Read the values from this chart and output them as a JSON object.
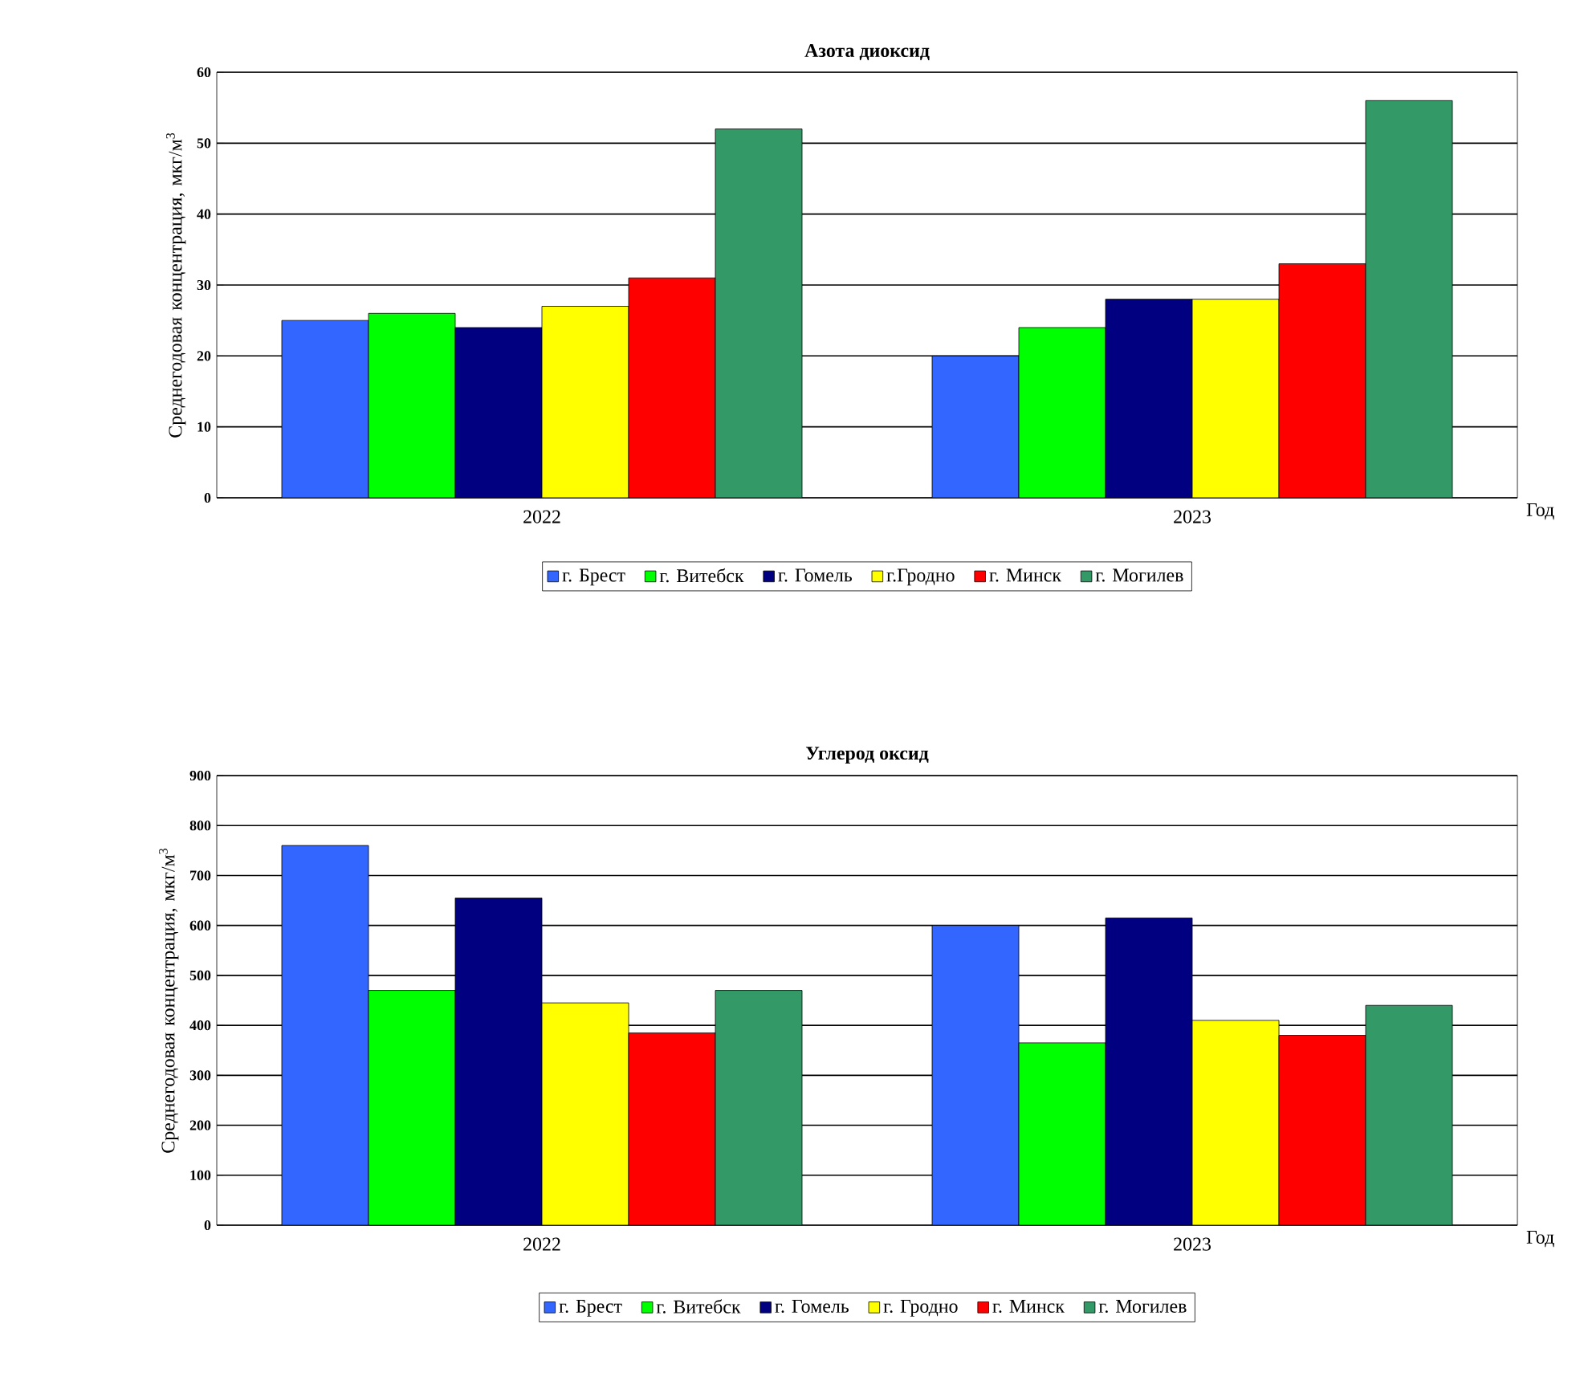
{
  "chart_data": [
    {
      "type": "bar",
      "title": "Азота диоксид",
      "xlabel": "Год",
      "ylabel": "Среднегодовая концентрация, мкг/м$^{3}$",
      "categories": [
        "2022",
        "2023"
      ],
      "ylim": [
        0,
        60
      ],
      "yticks": [
        0,
        10,
        20,
        30,
        40,
        50,
        60
      ],
      "grid": "y",
      "legend": "bottom",
      "series": [
        {
          "name": "г. Брест",
          "color": "#3366ff",
          "values": [
            25,
            20
          ]
        },
        {
          "name": "г. Витебск",
          "color": "#00ff00",
          "values": [
            26,
            24
          ]
        },
        {
          "name": "г. Гомель",
          "color": "#000080",
          "values": [
            24,
            28
          ]
        },
        {
          "name": "г.Гродно",
          "color": "#ffff00",
          "values": [
            27,
            28
          ]
        },
        {
          "name": "г. Минск",
          "color": "#ff0000",
          "values": [
            31,
            33
          ]
        },
        {
          "name": "г. Могилев",
          "color": "#339966",
          "values": [
            52,
            56
          ]
        }
      ]
    },
    {
      "type": "bar",
      "title": "Углерод оксид",
      "xlabel": "Год",
      "ylabel": "Среднегодовая концентрация, мкг/м$^{3}$",
      "categories": [
        "2022",
        "2023"
      ],
      "ylim": [
        0,
        900
      ],
      "yticks": [
        0,
        100,
        200,
        300,
        400,
        500,
        600,
        700,
        800,
        900
      ],
      "grid": "y",
      "legend": "bottom",
      "series": [
        {
          "name": "г. Брест",
          "color": "#3366ff",
          "values": [
            760,
            600
          ]
        },
        {
          "name": "г. Витебск",
          "color": "#00ff00",
          "values": [
            470,
            365
          ]
        },
        {
          "name": "г. Гомель",
          "color": "#000080",
          "values": [
            655,
            615
          ]
        },
        {
          "name": "г. Гродно",
          "color": "#ffff00",
          "values": [
            445,
            410
          ]
        },
        {
          "name": "г. Минск",
          "color": "#ff0000",
          "values": [
            385,
            380
          ]
        },
        {
          "name": "г. Могилев",
          "color": "#339966",
          "values": [
            470,
            440
          ]
        }
      ]
    }
  ]
}
